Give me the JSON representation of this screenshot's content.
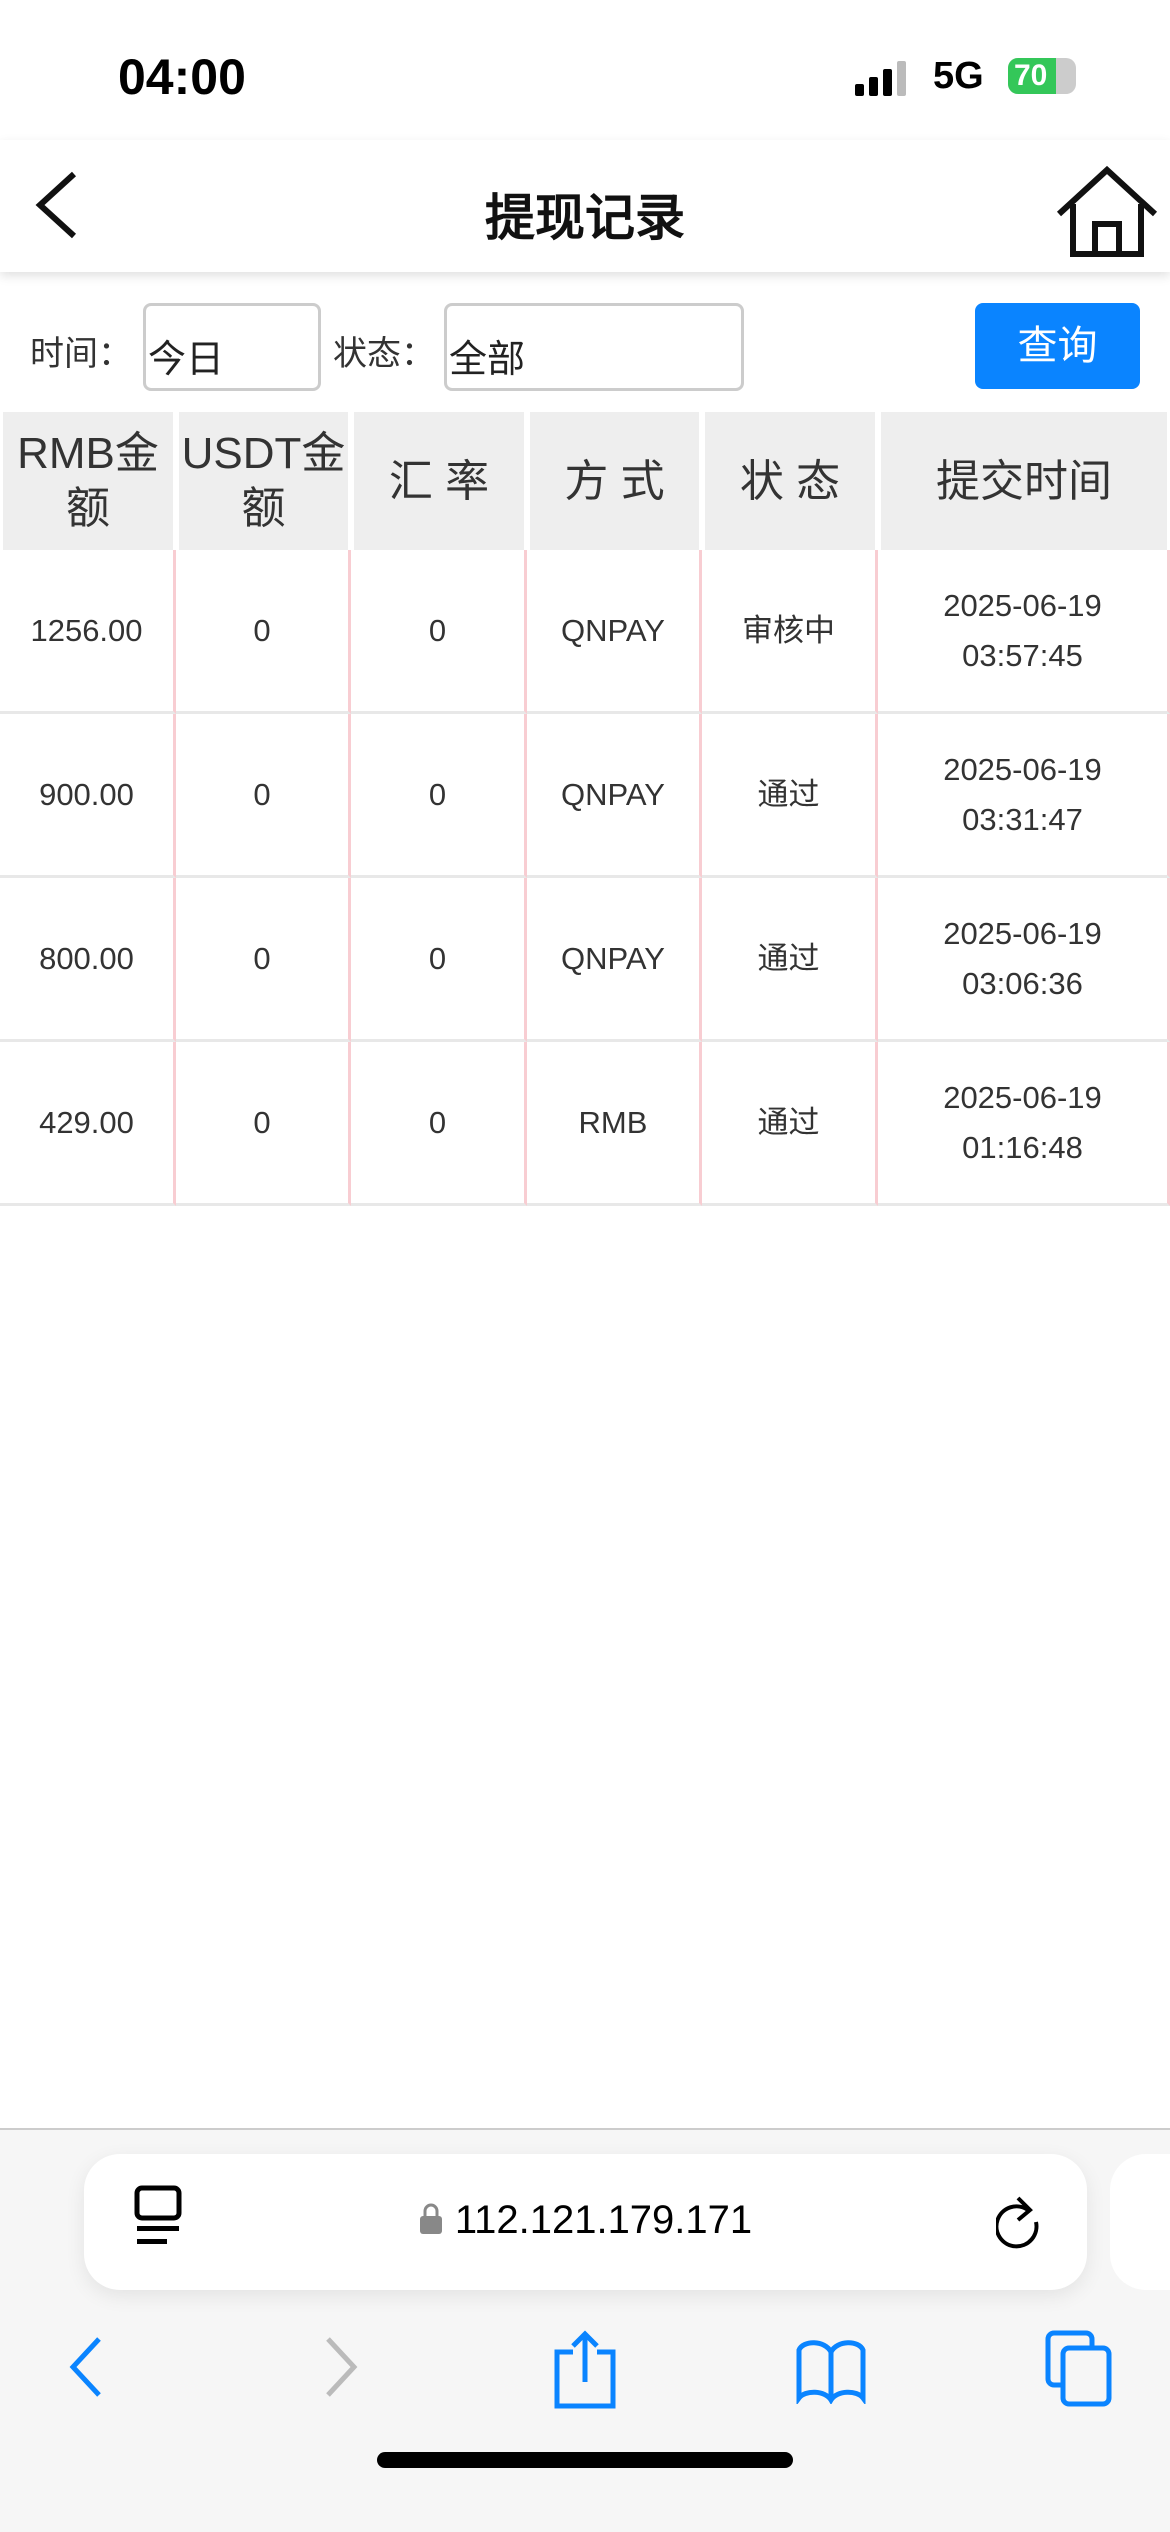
{
  "status_bar": {
    "time": "04:00",
    "network": "5G",
    "battery": "70",
    "battery_level": 70
  },
  "header": {
    "title": "提现记录"
  },
  "filter": {
    "time_label": "时间：",
    "time_value": "今日",
    "status_label": "状态：",
    "status_value": "全部",
    "query_button": "查询"
  },
  "table": {
    "columns": [
      "RMB金额",
      "USDT金额",
      "汇 率",
      "方 式",
      "状 态",
      "提交时间"
    ],
    "rows": [
      {
        "rmb": "1256.00",
        "usdt": "0",
        "rate": "0",
        "method": "QNPAY",
        "status": "审核中",
        "date": "2025-06-19",
        "time": "03:57:45"
      },
      {
        "rmb": "900.00",
        "usdt": "0",
        "rate": "0",
        "method": "QNPAY",
        "status": "通过",
        "date": "2025-06-19",
        "time": "03:31:47"
      },
      {
        "rmb": "800.00",
        "usdt": "0",
        "rate": "0",
        "method": "QNPAY",
        "status": "通过",
        "date": "2025-06-19",
        "time": "03:06:36"
      },
      {
        "rmb": "429.00",
        "usdt": "0",
        "rate": "0",
        "method": "RMB",
        "status": "通过",
        "date": "2025-06-19",
        "time": "01:16:48"
      }
    ]
  },
  "browser": {
    "url": "112.121.179.171",
    "accent": "#0a84ff"
  }
}
